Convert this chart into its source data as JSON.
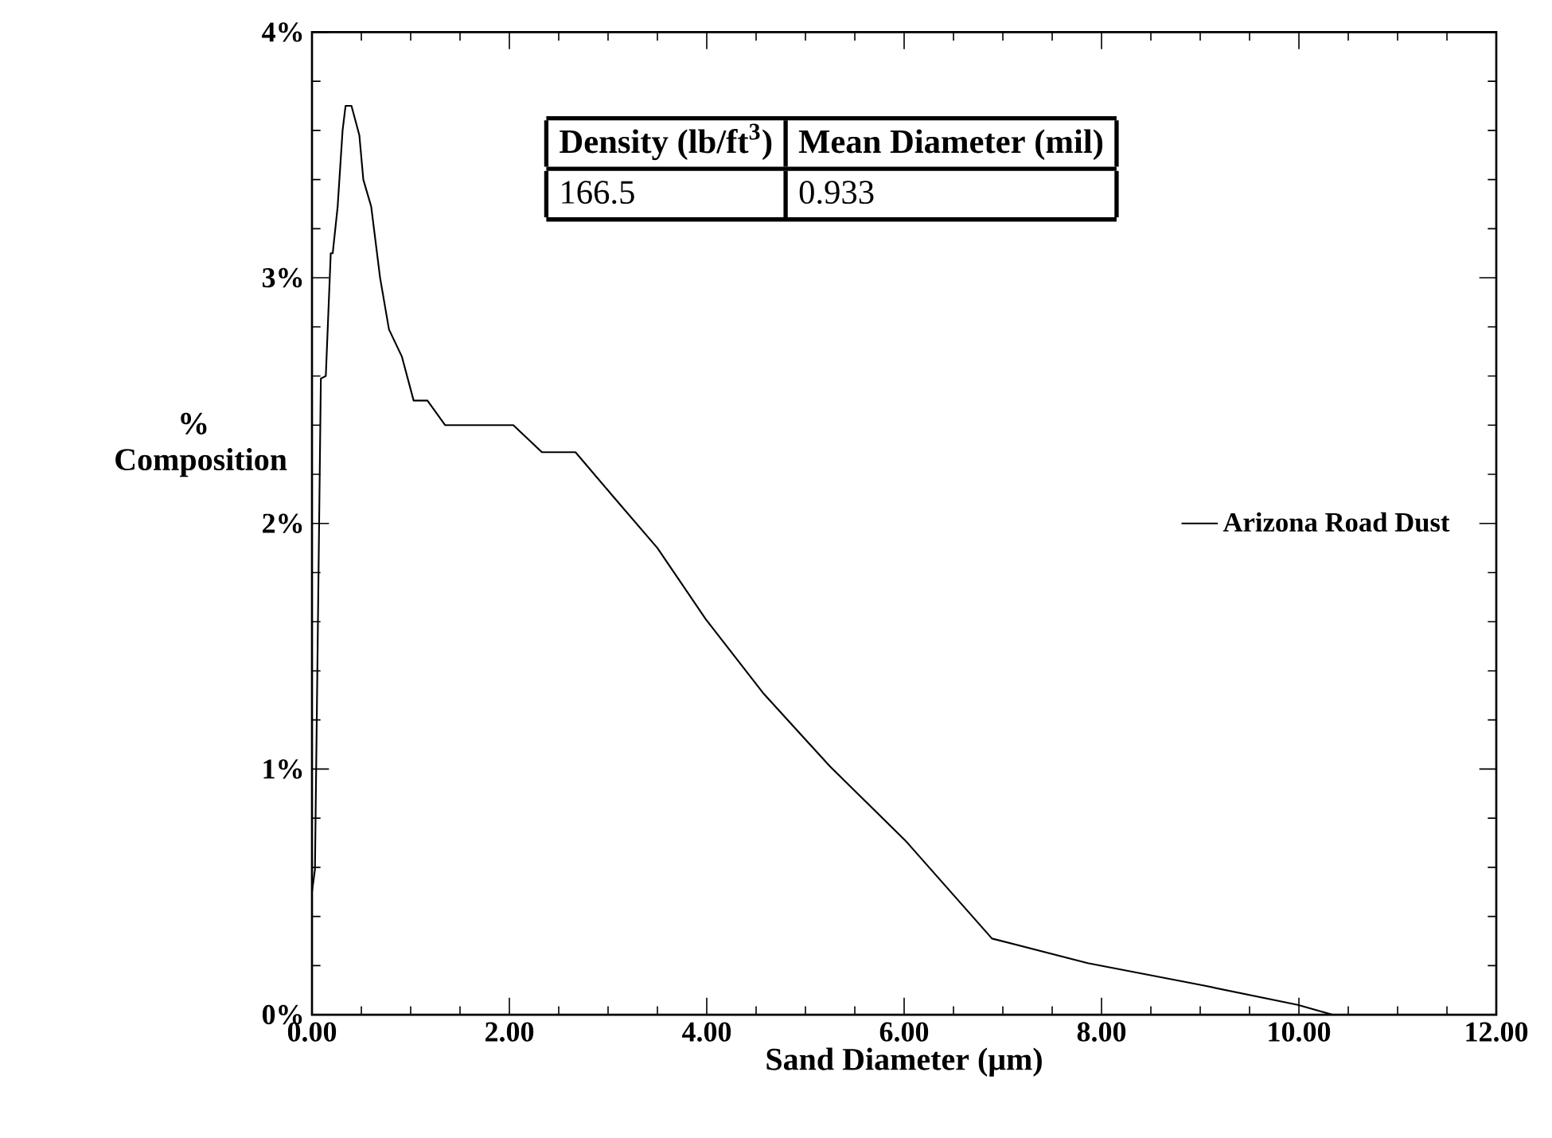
{
  "chart_data": {
    "type": "line",
    "xlabel": "Sand Diameter (μm)",
    "ylabel": "% Composition",
    "series": [
      {
        "name": "Arizona Road Dust",
        "color": "#000000",
        "x": [
          0,
          0.03,
          0.09,
          0.14,
          0.19,
          0.21,
          0.26,
          0.31,
          0.34,
          0.4,
          0.48,
          0.52,
          0.6,
          0.69,
          0.78,
          0.91,
          1.03,
          1.17,
          1.35,
          2.04,
          2.33,
          2.67,
          3.03,
          3.5,
          3.99,
          4.57,
          5.25,
          6.01,
          6.89,
          7.86,
          9.02,
          9.99,
          10.34
        ],
        "values": [
          0.5,
          0.59,
          2.59,
          2.6,
          3.1,
          3.1,
          3.29,
          3.6,
          3.7,
          3.7,
          3.58,
          3.4,
          3.29,
          3.0,
          2.79,
          2.68,
          2.5,
          2.5,
          2.4,
          2.4,
          2.29,
          2.29,
          2.12,
          1.9,
          1.61,
          1.31,
          1.01,
          0.71,
          0.31,
          0.21,
          0.12,
          0.04,
          0
        ]
      }
    ],
    "xlim": [
      0,
      12
    ],
    "ylim": [
      0,
      4
    ],
    "xticks": [
      {
        "value": 0,
        "label": "0.00"
      },
      {
        "value": 2,
        "label": "2.00"
      },
      {
        "value": 4,
        "label": "4.00"
      },
      {
        "value": 6,
        "label": "6.00"
      },
      {
        "value": 8,
        "label": "8.00"
      },
      {
        "value": 10,
        "label": "10.00"
      },
      {
        "value": 12,
        "label": "12.00"
      }
    ],
    "yticks": [
      {
        "value": 0,
        "label": "0%"
      },
      {
        "value": 1,
        "label": "1%"
      },
      {
        "value": 2,
        "label": "2%"
      },
      {
        "value": 3,
        "label": "3%"
      },
      {
        "value": 4,
        "label": "4%"
      }
    ],
    "annotations": [
      "Density (lb/ft$^{3}$)",
      "Mean Diameter (mil)",
      "166.5",
      "0.933"
    ],
    "legend": "right",
    "grid": false,
    "marker": "none",
    "line_style": "solid"
  }
}
